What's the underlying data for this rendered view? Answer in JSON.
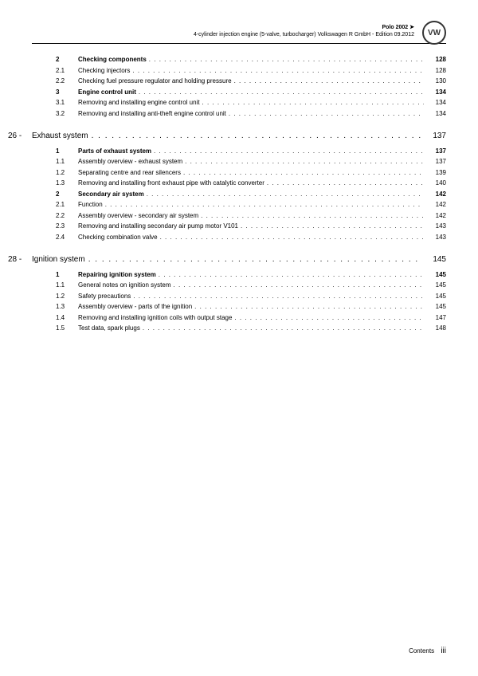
{
  "header": {
    "line1": "Polo 2002 ➤",
    "line2": "4-cylinder injection engine (5-valve, turbocharger) Volkswagen R GmbH - Edition 09.2012",
    "logo": "VW"
  },
  "sections_pre": [
    {
      "num": "2",
      "title": "Checking components",
      "page": "128",
      "bold": true
    },
    {
      "num": "2.1",
      "title": "Checking injectors",
      "page": "128",
      "bold": false
    },
    {
      "num": "2.2",
      "title": "Checking fuel pressure regulator and holding pressure",
      "page": "130",
      "bold": false
    },
    {
      "num": "3",
      "title": "Engine control unit",
      "page": "134",
      "bold": true
    },
    {
      "num": "3.1",
      "title": "Removing and installing engine control unit",
      "page": "134",
      "bold": false
    },
    {
      "num": "3.2",
      "title": "Removing and installing anti-theft engine control unit",
      "page": "134",
      "bold": false
    }
  ],
  "chapters": [
    {
      "num": "26 -",
      "title": "Exhaust system",
      "page": "137",
      "rows": [
        {
          "num": "1",
          "title": "Parts of exhaust system",
          "page": "137",
          "bold": true
        },
        {
          "num": "1.1",
          "title": "Assembly overview - exhaust system",
          "page": "137",
          "bold": false
        },
        {
          "num": "1.2",
          "title": "Separating centre and rear silencers",
          "page": "139",
          "bold": false
        },
        {
          "num": "1.3",
          "title": "Removing and installing front exhaust pipe with catalytic converter",
          "page": "140",
          "bold": false
        },
        {
          "num": "2",
          "title": "Secondary air system",
          "page": "142",
          "bold": true
        },
        {
          "num": "2.1",
          "title": "Function",
          "page": "142",
          "bold": false
        },
        {
          "num": "2.2",
          "title": "Assembly overview - secondary air system",
          "page": "142",
          "bold": false
        },
        {
          "num": "2.3",
          "title": "Removing and installing secondary air pump motor V101",
          "page": "143",
          "bold": false
        },
        {
          "num": "2.4",
          "title": "Checking combination valve",
          "page": "143",
          "bold": false
        }
      ]
    },
    {
      "num": "28 -",
      "title": "Ignition system",
      "page": "145",
      "rows": [
        {
          "num": "1",
          "title": "Repairing ignition system",
          "page": "145",
          "bold": true
        },
        {
          "num": "1.1",
          "title": "General notes on ignition system",
          "page": "145",
          "bold": false
        },
        {
          "num": "1.2",
          "title": "Safety precautions",
          "page": "145",
          "bold": false
        },
        {
          "num": "1.3",
          "title": "Assembly overview - parts of the ignition",
          "page": "145",
          "bold": false
        },
        {
          "num": "1.4",
          "title": "Removing and installing ignition coils with output stage",
          "page": "147",
          "bold": false
        },
        {
          "num": "1.5",
          "title": "Test data, spark plugs",
          "page": "148",
          "bold": false
        }
      ]
    }
  ],
  "footer": {
    "label": "Contents",
    "pagenum": "iii"
  },
  "dots": ". . . . . . . . . . . . . . . . . . . . . . . . . . . . . . . . . . . . . . . . . . . . . . . . . . . . . . . . . . . . . . . . . . . . . . . . . . . . . . . . . . . . . . . . . . . . . . . . . . . ."
}
